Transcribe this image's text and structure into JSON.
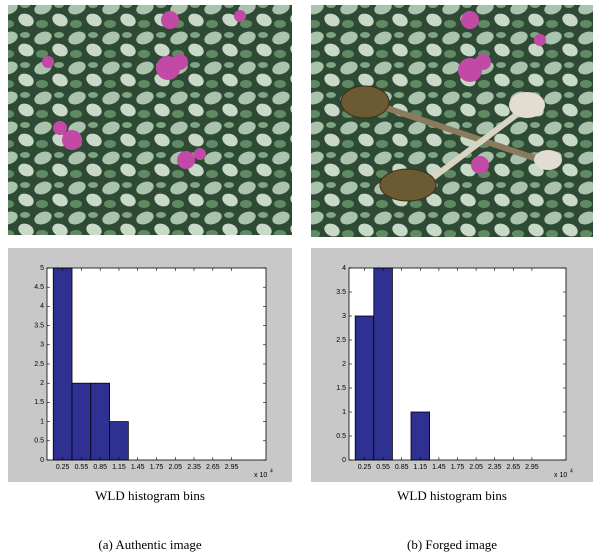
{
  "chart_data": [
    {
      "type": "histogram",
      "color": "#2e3192",
      "bins": [
        0.1,
        0.4,
        0.7,
        1.0,
        1.3,
        1.6,
        1.9,
        2.2,
        2.5,
        2.8,
        3.1
      ],
      "values": [
        5,
        2,
        2,
        1,
        0,
        0,
        0,
        0,
        0,
        0
      ],
      "xlim": [
        0,
        3.5
      ],
      "ylim": [
        0,
        5
      ],
      "xticks": [
        0.25,
        0.55,
        0.85,
        1.15,
        1.45,
        1.75,
        2.05,
        2.35,
        2.65,
        2.95
      ],
      "yticks": [
        0,
        0.5,
        1,
        1.5,
        2,
        2.5,
        3,
        3.5,
        4,
        4.5,
        5
      ],
      "x_scale_note": "x 10",
      "x_scale_exponent": "4",
      "xlabel": "WLD histogram bins",
      "caption": "(a) Authentic image"
    },
    {
      "type": "histogram",
      "color": "#2e3192",
      "bins": [
        0.1,
        0.4,
        0.7,
        1.0,
        1.3,
        1.6,
        1.9,
        2.2,
        2.5,
        2.8,
        3.1
      ],
      "values": [
        3,
        4,
        0,
        1,
        0,
        0,
        0,
        0,
        0,
        0
      ],
      "xlim": [
        0,
        3.5
      ],
      "ylim": [
        0,
        4
      ],
      "xticks": [
        0.25,
        0.55,
        0.85,
        1.15,
        1.45,
        1.75,
        2.05,
        2.35,
        2.65,
        2.95
      ],
      "yticks": [
        0,
        0.5,
        1,
        1.5,
        2,
        2.5,
        3,
        3.5,
        4
      ],
      "x_scale_note": "x 10",
      "x_scale_exponent": "4",
      "xlabel": "WLD histogram bins",
      "caption": "(b) Forged image"
    }
  ]
}
